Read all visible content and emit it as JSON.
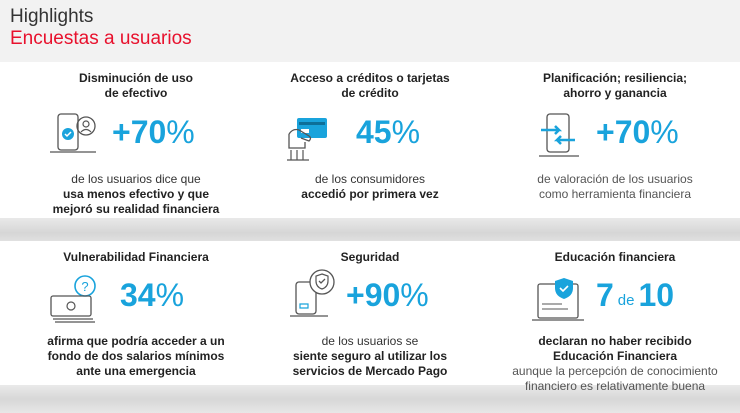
{
  "header": {
    "title": "Highlights",
    "subtitle": "Encuestas a usuarios"
  },
  "colors": {
    "accent": "#19a3dc",
    "brand_red": "#e8112d"
  },
  "cards": [
    {
      "title_line1": "Disminución de uso",
      "title_line2": "de efectivo",
      "icon": "phone-person-icon",
      "stat": "+70",
      "unit": "%",
      "desc_line1": "de los usuarios dice que",
      "desc_line2": "usa menos efectivo y que",
      "desc_line3": "mejoró su realidad financiera"
    },
    {
      "title_line1": "Acceso a créditos o tarjetas",
      "title_line2": "de crédito",
      "icon": "hand-card-icon",
      "stat": "45",
      "unit": "%",
      "desc_line1": "de los consumidores",
      "desc_line2": "accedió por primera vez"
    },
    {
      "title_line1": "Planificación; resiliencia;",
      "title_line2": "ahorro y ganancia",
      "icon": "phone-transfer-icon",
      "stat": "+70",
      "unit": "%",
      "desc_line1": "de valoración de los usuarios",
      "desc_line2": "como herramienta financiera"
    },
    {
      "title_line1": "Vulnerabilidad Financiera",
      "icon": "money-question-icon",
      "stat": "34",
      "unit": "%",
      "desc_line1": "afirma que podría acceder a un",
      "desc_line2": "fondo de dos salarios mínimos",
      "desc_line3": "ante una emergencia"
    },
    {
      "title_line1": "Seguridad",
      "icon": "phone-shield-icon",
      "stat": "+90",
      "unit": "%",
      "desc_line1": "de los usuarios se",
      "desc_line2": "siente seguro al utilizar los",
      "desc_line3": "servicios de Mercado Pago"
    },
    {
      "title_line1": "Educación financiera",
      "icon": "document-shield-icon",
      "stat_a": "7",
      "stat_de": "de",
      "stat_b": "10",
      "desc_line1": "declaran no haber recibido",
      "desc_line2": "Educación Financiera",
      "desc_line3": "aunque la percepción de conocimiento",
      "desc_line4": "financiero es relativamente buena"
    }
  ]
}
